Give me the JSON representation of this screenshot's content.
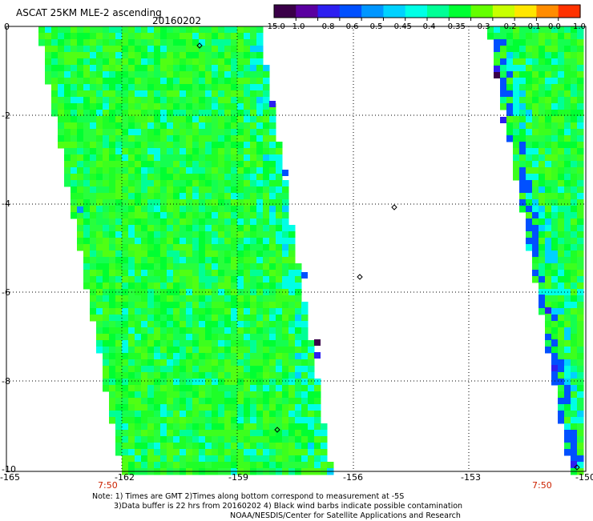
{
  "header": {
    "title": "ASCAT 25KM MLE-2 ascending",
    "date": "20160202"
  },
  "colorbar": {
    "labels": [
      "-15.0",
      "-1.0",
      "-0.8",
      "-0.6",
      "-0.5",
      "-0.45",
      "-0.4",
      "-0.35",
      "-0.3",
      "-0.2",
      "-0.1",
      "0.0",
      "1.0"
    ],
    "colors": [
      "#3a0048",
      "#5a00a0",
      "#2d1ff0",
      "#0050ff",
      "#0096ff",
      "#00d2ff",
      "#00ffe6",
      "#00ff96",
      "#00ff32",
      "#64ff00",
      "#c8ff00",
      "#ffe600",
      "#ff8c00",
      "#ff3200"
    ]
  },
  "map": {
    "lon_labels": [
      "-165",
      "-162",
      "-159",
      "-156",
      "-153",
      "-150"
    ],
    "lat_labels": [
      "0",
      "-2",
      "-4",
      "-6",
      "-8",
      "-10"
    ],
    "time_labels": [
      "7:50",
      "7:50"
    ]
  },
  "notes": {
    "line1": "Note: 1) Times are GMT 2)Times along bottom correspond to measurement at -5S",
    "line2": "3)Data buffer is 22 hrs from 20160202 4) Black wind barbs indicate possible contamination",
    "line3": "NOAA/NESDIS/Center for Satellite Applications and Research"
  }
}
